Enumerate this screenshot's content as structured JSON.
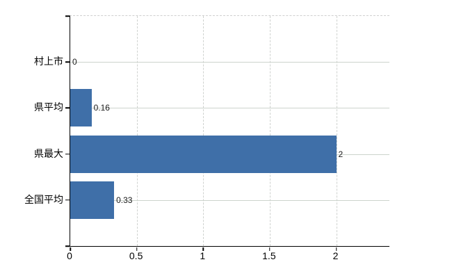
{
  "chart_data": {
    "type": "bar",
    "orientation": "horizontal",
    "title": "",
    "xlabel": "",
    "ylabel": "",
    "categories": [
      "村上市",
      "県平均",
      "県最大",
      "全国平均"
    ],
    "values": [
      0,
      0.16,
      2,
      0.33
    ],
    "value_labels": [
      "0",
      "0.16",
      "2",
      "0.33"
    ],
    "x_ticks": [
      0,
      0.5,
      1,
      1.5,
      2
    ],
    "x_tick_labels": [
      "0",
      "0.5",
      "1",
      "1.5",
      "2"
    ],
    "xlim": [
      0,
      2.4
    ],
    "grid": true,
    "legend": false,
    "colors": {
      "bar": "#3f6fa8",
      "h_gridline": "#ccd3cc",
      "v_gridline": "#cfd2cf",
      "axis": "#000000",
      "text": "#000000",
      "background": "#ffffff"
    }
  }
}
